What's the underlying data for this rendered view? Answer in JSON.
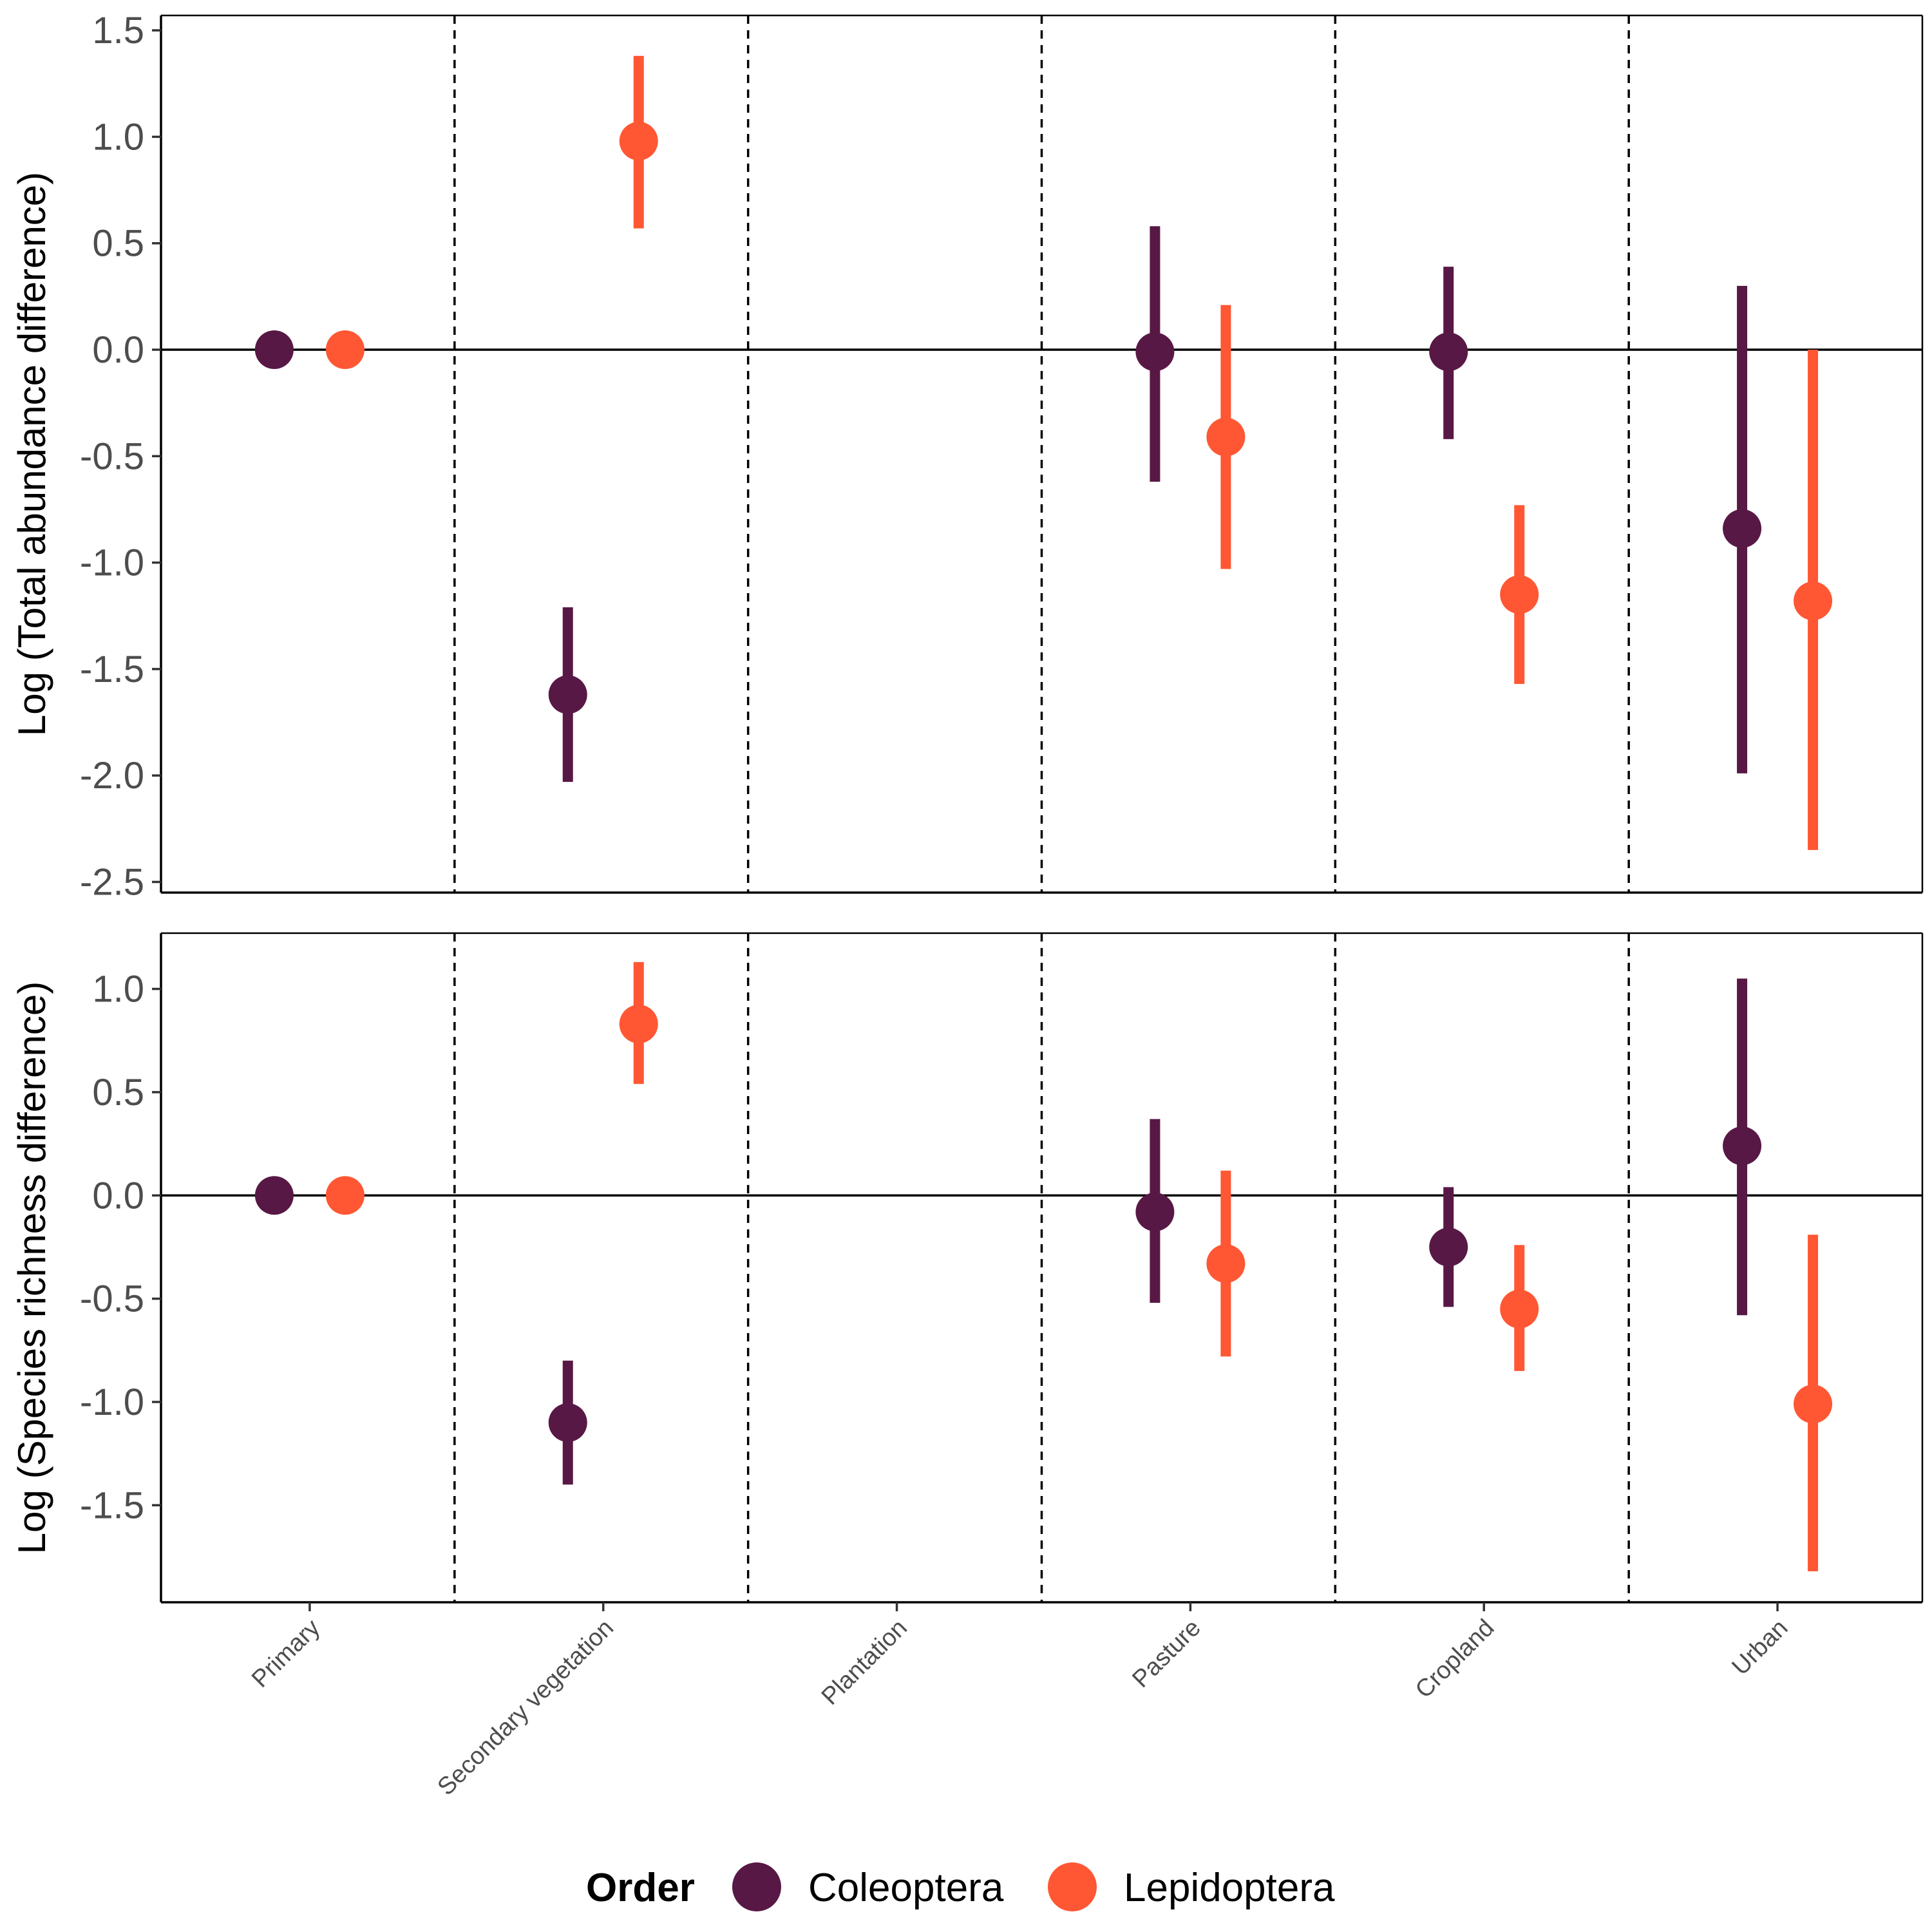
{
  "chart_data": {
    "type": "scatter",
    "categories": [
      "Primary",
      "Secondary vegetation",
      "Plantation",
      "Pasture",
      "Cropland",
      "Urban"
    ],
    "legend": {
      "title": "Order",
      "position": "bottom",
      "entries": [
        {
          "name": "Coleoptera",
          "color": "#581845"
        },
        {
          "name": "Lepidoptera",
          "color": "#FF5733"
        }
      ]
    },
    "panels": [
      {
        "ylabel": "Log (Total abundance difference)",
        "ylim": [
          -2.55,
          1.57
        ],
        "yticks": [
          1.5,
          1.0,
          0.5,
          0.0,
          -0.5,
          -1.0,
          -1.5,
          -2.0,
          -2.5
        ],
        "ytick_labels": [
          "1.5",
          "1.0",
          "0.5",
          "0.0",
          "-0.5",
          "-1.0",
          "-1.5",
          "-2.0",
          "-2.5"
        ],
        "grid": false,
        "reference_line": 0,
        "series": [
          {
            "name": "Coleoptera",
            "points": [
              {
                "category": "Primary",
                "y": 0.0,
                "lower": null,
                "upper": null
              },
              {
                "category": "Secondary vegetation",
                "y": -1.62,
                "lower": -2.03,
                "upper": -1.21
              },
              {
                "category": "Pasture",
                "y": -0.01,
                "lower": -0.62,
                "upper": 0.58
              },
              {
                "category": "Cropland",
                "y": -0.01,
                "lower": -0.42,
                "upper": 0.39
              },
              {
                "category": "Urban",
                "y": -0.84,
                "lower": -1.99,
                "upper": 0.3
              }
            ]
          },
          {
            "name": "Lepidoptera",
            "points": [
              {
                "category": "Primary",
                "y": 0.0,
                "lower": null,
                "upper": null
              },
              {
                "category": "Secondary vegetation",
                "y": 0.98,
                "lower": 0.57,
                "upper": 1.38
              },
              {
                "category": "Pasture",
                "y": -0.41,
                "lower": -1.03,
                "upper": 0.21
              },
              {
                "category": "Cropland",
                "y": -1.15,
                "lower": -1.57,
                "upper": -0.73
              },
              {
                "category": "Urban",
                "y": -1.18,
                "lower": -2.35,
                "upper": 0.0
              }
            ]
          }
        ]
      },
      {
        "ylabel": "Log (Species richness difference)",
        "ylim": [
          -1.97,
          1.27
        ],
        "yticks": [
          1.0,
          0.5,
          0.0,
          -0.5,
          -1.0,
          -1.5
        ],
        "ytick_labels": [
          "1.0",
          "0.5",
          "0.0",
          "-0.5",
          "-1.0",
          "-1.5"
        ],
        "grid": false,
        "reference_line": 0,
        "series": [
          {
            "name": "Coleoptera",
            "points": [
              {
                "category": "Primary",
                "y": 0.0,
                "lower": null,
                "upper": null
              },
              {
                "category": "Secondary vegetation",
                "y": -1.1,
                "lower": -1.4,
                "upper": -0.8
              },
              {
                "category": "Pasture",
                "y": -0.08,
                "lower": -0.52,
                "upper": 0.37
              },
              {
                "category": "Cropland",
                "y": -0.25,
                "lower": -0.54,
                "upper": 0.04
              },
              {
                "category": "Urban",
                "y": 0.24,
                "lower": -0.58,
                "upper": 1.05
              }
            ]
          },
          {
            "name": "Lepidoptera",
            "points": [
              {
                "category": "Primary",
                "y": 0.0,
                "lower": null,
                "upper": null
              },
              {
                "category": "Secondary vegetation",
                "y": 0.83,
                "lower": 0.54,
                "upper": 1.13
              },
              {
                "category": "Pasture",
                "y": -0.33,
                "lower": -0.78,
                "upper": 0.12
              },
              {
                "category": "Cropland",
                "y": -0.55,
                "lower": -0.85,
                "upper": -0.24
              },
              {
                "category": "Urban",
                "y": -1.01,
                "lower": -1.82,
                "upper": -0.19
              }
            ]
          }
        ]
      }
    ]
  }
}
